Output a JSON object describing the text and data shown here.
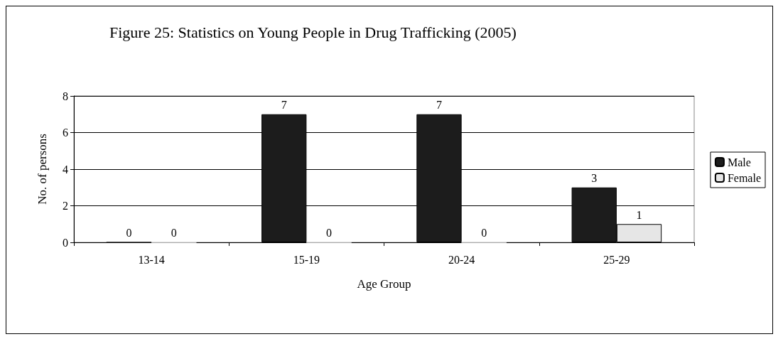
{
  "chart_data": {
    "type": "bar",
    "title": "Figure 25: Statistics on Young People in Drug Trafficking (2005)",
    "xlabel": "Age Group",
    "ylabel": "No. of persons",
    "categories": [
      "13-14",
      "15-19",
      "20-24",
      "25-29"
    ],
    "series": [
      {
        "name": "Male",
        "color": "#1c1c1c",
        "values": [
          0,
          7,
          7,
          3
        ]
      },
      {
        "name": "Female",
        "color": "#e6e6e6",
        "values": [
          0,
          0,
          0,
          1
        ]
      }
    ],
    "ylim": [
      0,
      8
    ],
    "yticks": [
      0,
      2,
      4,
      6,
      8
    ],
    "grid": "y",
    "legend": "right",
    "data_labels": true
  }
}
